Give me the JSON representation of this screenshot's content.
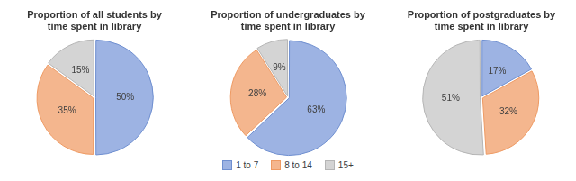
{
  "chart_data": [
    {
      "type": "pie",
      "title": "Proportion of all students by time spent in library",
      "categories": [
        "1 to 7",
        "8 to 14",
        "15+"
      ],
      "values": [
        50,
        35,
        15
      ],
      "value_labels": [
        "50%",
        "35%",
        "15%"
      ],
      "colors": [
        "#9db3e3",
        "#f4b68e",
        "#d4d4d4"
      ],
      "data_labels": true
    },
    {
      "type": "pie",
      "title": "Proportion of undergraduates by time spent in library",
      "categories": [
        "1 to 7",
        "8 to 14",
        "15+"
      ],
      "values": [
        63,
        28,
        9
      ],
      "value_labels": [
        "63%",
        "28%",
        "9%"
      ],
      "colors": [
        "#9db3e3",
        "#f4b68e",
        "#d4d4d4"
      ],
      "data_labels": true,
      "legend": "bottom"
    },
    {
      "type": "pie",
      "title": "Proportion of postgraduates by time spent in library",
      "categories": [
        "1 to 7",
        "8 to 14",
        "15+"
      ],
      "values": [
        17,
        32,
        51
      ],
      "value_labels": [
        "17%",
        "32%",
        "51%"
      ],
      "colors": [
        "#9db3e3",
        "#f4b68e",
        "#d4d4d4"
      ],
      "data_labels": true
    }
  ]
}
